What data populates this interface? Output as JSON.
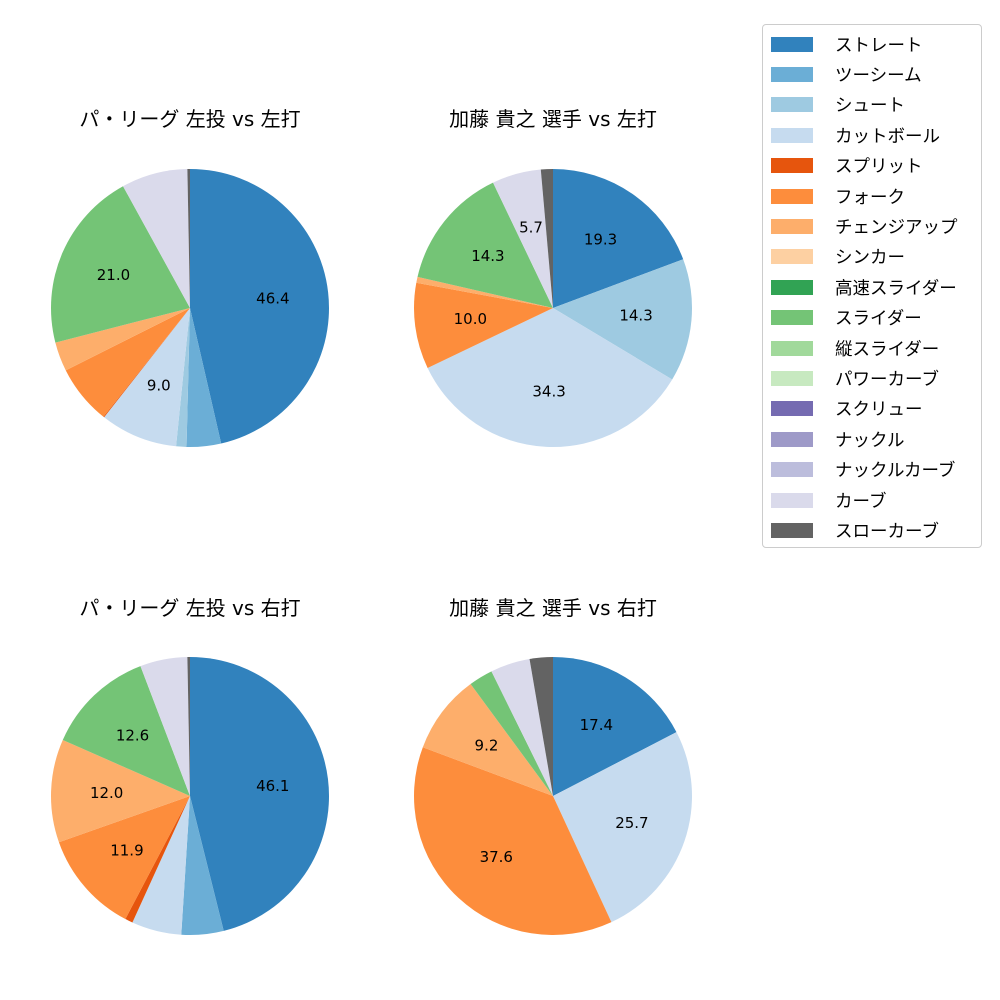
{
  "legend": {
    "items": [
      {
        "label": "ストレート",
        "color": "#3182bd"
      },
      {
        "label": "ツーシーム",
        "color": "#6baed6"
      },
      {
        "label": "シュート",
        "color": "#9ecae1"
      },
      {
        "label": "カットボール",
        "color": "#c6dbef"
      },
      {
        "label": "スプリット",
        "color": "#e6550d"
      },
      {
        "label": "フォーク",
        "color": "#fd8d3c"
      },
      {
        "label": "チェンジアップ",
        "color": "#fdae6b"
      },
      {
        "label": "シンカー",
        "color": "#fdd0a2"
      },
      {
        "label": "高速スライダー",
        "color": "#31a354"
      },
      {
        "label": "スライダー",
        "color": "#74c476"
      },
      {
        "label": "縦スライダー",
        "color": "#a1d99b"
      },
      {
        "label": "パワーカーブ",
        "color": "#c7e9c0"
      },
      {
        "label": "スクリュー",
        "color": "#756bb1"
      },
      {
        "label": "ナックル",
        "color": "#9e9ac8"
      },
      {
        "label": "ナックルカーブ",
        "color": "#bcbddc"
      },
      {
        "label": "カーブ",
        "color": "#dadaeb"
      },
      {
        "label": "スローカーブ",
        "color": "#636363"
      }
    ]
  },
  "chart_data": [
    {
      "type": "pie",
      "title": "パ・リーグ 左投 vs 左打",
      "start_angle": 90,
      "direction": "clockwise",
      "slices": [
        {
          "label": "ストレート",
          "value": 46.4,
          "shown": "46.4"
        },
        {
          "label": "ツーシーム",
          "value": 4.0,
          "shown": ""
        },
        {
          "label": "シュート",
          "value": 1.2,
          "shown": ""
        },
        {
          "label": "カットボール",
          "value": 9.0,
          "shown": "9.0"
        },
        {
          "label": "スプリット",
          "value": 0.1,
          "shown": ""
        },
        {
          "label": "フォーク",
          "value": 6.9,
          "shown": ""
        },
        {
          "label": "チェンジアップ",
          "value": 3.4,
          "shown": ""
        },
        {
          "label": "スライダー",
          "value": 21.0,
          "shown": "21.0"
        },
        {
          "label": "カーブ",
          "value": 7.7,
          "shown": ""
        },
        {
          "label": "スローカーブ",
          "value": 0.3,
          "shown": ""
        }
      ]
    },
    {
      "type": "pie",
      "title": "加藤 貴之 選手 vs 左打",
      "start_angle": 90,
      "direction": "clockwise",
      "slices": [
        {
          "label": "ストレート",
          "value": 19.3,
          "shown": "19.3"
        },
        {
          "label": "シュート",
          "value": 14.3,
          "shown": "14.3"
        },
        {
          "label": "カットボール",
          "value": 34.3,
          "shown": "34.3"
        },
        {
          "label": "フォーク",
          "value": 10.0,
          "shown": "10.0"
        },
        {
          "label": "チェンジアップ",
          "value": 0.7,
          "shown": ""
        },
        {
          "label": "スライダー",
          "value": 14.3,
          "shown": "14.3"
        },
        {
          "label": "カーブ",
          "value": 5.7,
          "shown": "5.7"
        },
        {
          "label": "スローカーブ",
          "value": 1.4,
          "shown": ""
        }
      ]
    },
    {
      "type": "pie",
      "title": "パ・リーグ 左投 vs 右打",
      "start_angle": 90,
      "direction": "clockwise",
      "slices": [
        {
          "label": "ストレート",
          "value": 46.1,
          "shown": "46.1"
        },
        {
          "label": "ツーシーム",
          "value": 4.9,
          "shown": ""
        },
        {
          "label": "カットボール",
          "value": 5.8,
          "shown": ""
        },
        {
          "label": "スプリット",
          "value": 0.9,
          "shown": ""
        },
        {
          "label": "フォーク",
          "value": 11.9,
          "shown": "11.9"
        },
        {
          "label": "チェンジアップ",
          "value": 12.0,
          "shown": "12.0"
        },
        {
          "label": "スライダー",
          "value": 12.6,
          "shown": "12.6"
        },
        {
          "label": "カーブ",
          "value": 5.5,
          "shown": ""
        },
        {
          "label": "スローカーブ",
          "value": 0.3,
          "shown": ""
        }
      ]
    },
    {
      "type": "pie",
      "title": "加藤 貴之 選手 vs 右打",
      "start_angle": 90,
      "direction": "clockwise",
      "slices": [
        {
          "label": "ストレート",
          "value": 17.4,
          "shown": "17.4"
        },
        {
          "label": "カットボール",
          "value": 25.7,
          "shown": "25.7"
        },
        {
          "label": "フォーク",
          "value": 37.6,
          "shown": "37.6"
        },
        {
          "label": "チェンジアップ",
          "value": 9.2,
          "shown": "9.2"
        },
        {
          "label": "スライダー",
          "value": 2.8,
          "shown": ""
        },
        {
          "label": "カーブ",
          "value": 4.6,
          "shown": ""
        },
        {
          "label": "スローカーブ",
          "value": 2.7,
          "shown": ""
        }
      ]
    }
  ]
}
